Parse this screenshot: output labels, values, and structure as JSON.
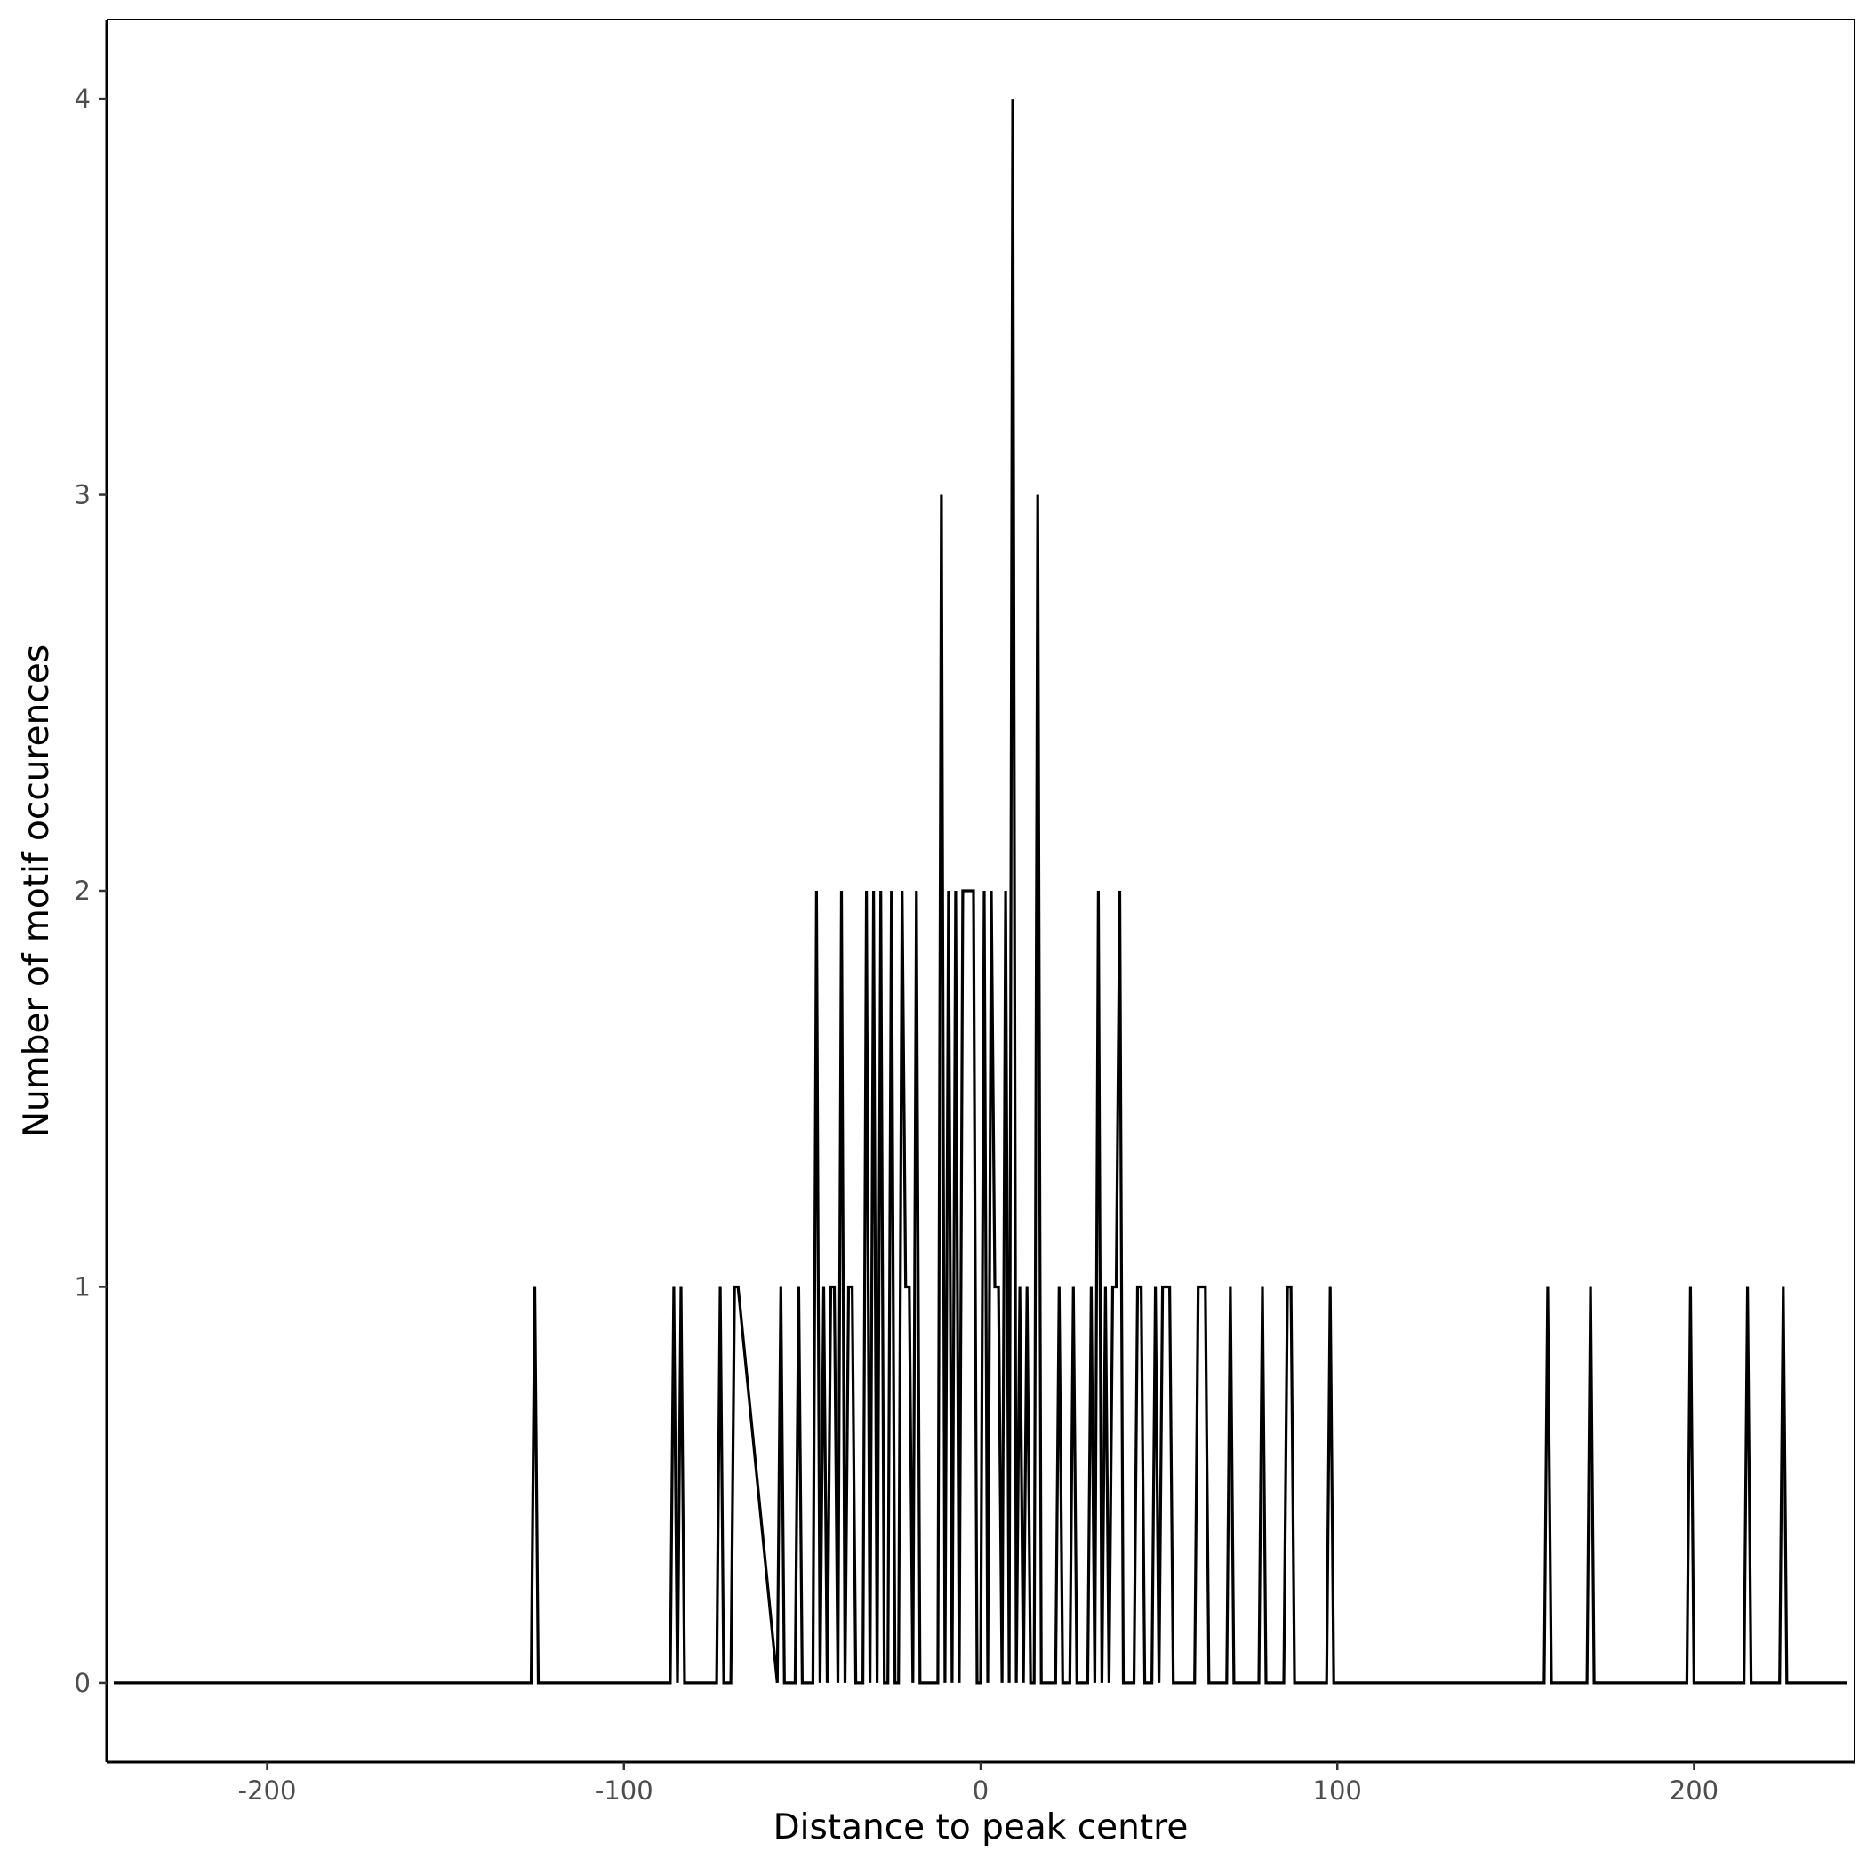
{
  "chart_data": {
    "type": "line",
    "xlabel": "Distance to peak centre",
    "ylabel": "Number of motif occurences",
    "xlim": [
      -245,
      245
    ],
    "ylim": [
      -0.2,
      4.2
    ],
    "xticks": [
      -200,
      -100,
      0,
      100,
      200
    ],
    "yticks": [
      0,
      1,
      2,
      3,
      4
    ],
    "xtick_labels": [
      "-200",
      "-100",
      "0",
      "100",
      "200"
    ],
    "ytick_labels": [
      "0",
      "1",
      "2",
      "3",
      "4"
    ],
    "grid": false,
    "legend": "none",
    "line_color": "#000000",
    "series": [
      {
        "x": [
          -243,
          -126,
          -125,
          -124,
          -87,
          -86,
          -85,
          -84,
          -83,
          -82,
          -74,
          -73,
          -72,
          -70,
          -69,
          -68,
          -57,
          -56,
          -55,
          -52,
          -51,
          -50,
          -47,
          -46,
          -45,
          -44,
          -43,
          -42,
          -41,
          -40,
          -39,
          -38,
          -37,
          -36,
          -35,
          -33,
          -32,
          -31,
          -30,
          -29,
          -28,
          -27,
          -26,
          -25,
          -24,
          -23,
          -22,
          -21,
          -20,
          -19,
          -18,
          -17,
          -16,
          -15,
          -12,
          -11,
          -10,
          -9,
          -8,
          -7,
          -6,
          -5,
          -4,
          -3,
          -2,
          -1,
          0,
          1,
          2,
          3,
          4,
          5,
          6,
          7,
          8,
          9,
          10,
          11,
          12,
          13,
          14,
          15,
          16,
          17,
          18,
          21,
          22,
          23,
          25,
          26,
          27,
          30,
          31,
          32,
          33,
          34,
          35,
          36,
          37,
          38,
          39,
          40,
          43,
          44,
          45,
          46,
          48,
          49,
          50,
          51,
          52,
          53,
          54,
          60,
          61,
          62,
          63,
          64,
          69,
          70,
          71,
          78,
          79,
          80,
          85,
          86,
          87,
          88,
          97,
          98,
          99,
          158,
          159,
          160,
          170,
          171,
          172,
          198,
          199,
          200,
          214,
          215,
          216,
          224,
          225,
          226,
          243
        ],
        "y": [
          0,
          0,
          1,
          0,
          0,
          1,
          0,
          1,
          0,
          0,
          0,
          1,
          0,
          0,
          1,
          1,
          0,
          1,
          0,
          0,
          1,
          0,
          0,
          2,
          0,
          1,
          0,
          1,
          1,
          0,
          2,
          0,
          1,
          1,
          0,
          0,
          2,
          0,
          2,
          0,
          2,
          0,
          0,
          2,
          0,
          0,
          2,
          1,
          1,
          0,
          2,
          0,
          0,
          0,
          0,
          3,
          0,
          2,
          0,
          2,
          0,
          2,
          2,
          2,
          2,
          0,
          0,
          2,
          0,
          2,
          1,
          1,
          0,
          2,
          0,
          4,
          0,
          1,
          0,
          1,
          0,
          0,
          3,
          0,
          0,
          0,
          1,
          0,
          0,
          1,
          0,
          0,
          1,
          0,
          2,
          0,
          1,
          0,
          1,
          1,
          2,
          0,
          0,
          1,
          1,
          0,
          0,
          1,
          0,
          1,
          1,
          1,
          0,
          0,
          1,
          1,
          1,
          0,
          0,
          1,
          0,
          0,
          1,
          0,
          0,
          1,
          1,
          0,
          0,
          1,
          0,
          0,
          1,
          0,
          0,
          1,
          0,
          0,
          1,
          0,
          0,
          1,
          0,
          0,
          1,
          0,
          0
        ]
      }
    ]
  }
}
